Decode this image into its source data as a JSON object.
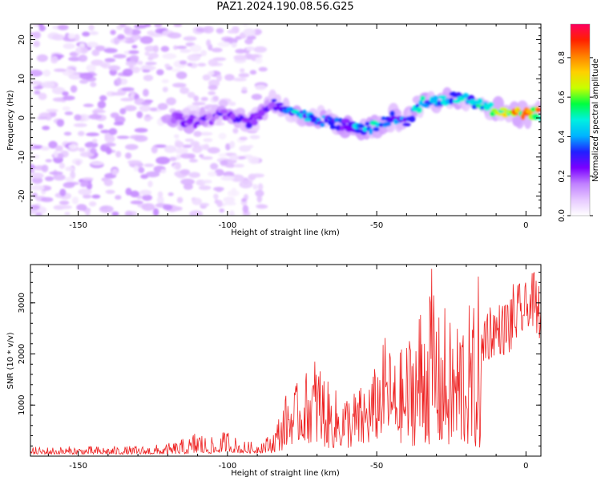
{
  "figure": {
    "title": "PAZ1.2024.190.08.56.G25"
  },
  "chart_data": [
    {
      "type": "heatmap",
      "title": "PAZ1.2024.190.08.56.G25",
      "xlabel": "Height of straight line (km)",
      "ylabel": "Frequency (Hz)",
      "xlim": [
        -166,
        5
      ],
      "ylim": [
        -25,
        24
      ],
      "xticks": [
        -150,
        -100,
        -50,
        0
      ],
      "yticks": [
        -20,
        -10,
        0,
        10,
        20
      ],
      "grid": false,
      "colorbar": {
        "label": "Normalized spectral amplitude",
        "range": [
          0,
          0.97
        ],
        "ticks": [
          0.0,
          0.2,
          0.4,
          0.6,
          0.8
        ],
        "colormap": "gist_ncar-like (white, violet, blue, cyan, green, yellow, orange, red, magenta)",
        "colors": [
          "#ffffff",
          "#e6c8ff",
          "#c080ff",
          "#7a00ff",
          "#2020ff",
          "#00b4ff",
          "#00f0e0",
          "#00ff40",
          "#c8ff00",
          "#ffd000",
          "#ff8000",
          "#ff2000",
          "#ff0060"
        ]
      },
      "ridge": {
        "description": "Main signal ridge frequency vs height",
        "x": [
          -118,
          -110,
          -100,
          -92,
          -85,
          -78,
          -72,
          -66,
          -60,
          -55,
          -50,
          -45,
          -40,
          -35,
          -30,
          -25,
          -20,
          -15,
          -10,
          -5,
          0,
          4
        ],
        "y": [
          0,
          -1,
          1,
          -1,
          4,
          1,
          0,
          -1,
          -2,
          -3,
          -2,
          0,
          -1,
          4,
          4,
          5,
          5,
          3,
          2,
          1,
          1,
          1
        ],
        "amplitude": [
          0.25,
          0.25,
          0.3,
          0.3,
          0.3,
          0.5,
          0.45,
          0.4,
          0.4,
          0.5,
          0.55,
          0.45,
          0.4,
          0.55,
          0.5,
          0.5,
          0.5,
          0.55,
          0.7,
          0.85,
          0.95,
          0.9
        ]
      }
    },
    {
      "type": "line",
      "xlabel": "Height of straight line (km)",
      "ylabel": "SNR (10 * v/v)",
      "xlim": [
        -166,
        5
      ],
      "ylim": [
        0,
        3750
      ],
      "xticks": [
        -150,
        -100,
        -50,
        0
      ],
      "yticks": [
        1000,
        2000,
        3000
      ],
      "grid": false,
      "series": [
        {
          "color": "#ee2222",
          "envelope": {
            "x": [
              -166,
              -150,
              -130,
              -120,
              -112,
              -110,
              -108,
              -104,
              -100,
              -98,
              -95,
              -90,
              -85,
              -82,
              -80,
              -75,
              -70,
              -66,
              -62,
              -58,
              -55,
              -50,
              -47,
              -44,
              -40,
              -36,
              -33,
              -31,
              -29,
              -27,
              -25,
              -22,
              -20,
              -18,
              -16,
              -15,
              -14,
              -12,
              -10,
              -8,
              -6,
              -4,
              -2,
              0,
              2,
              4,
              5
            ],
            "min": [
              40,
              40,
              40,
              40,
              50,
              60,
              60,
              50,
              100,
              70,
              60,
              60,
              60,
              100,
              200,
              300,
              200,
              150,
              150,
              150,
              150,
              300,
              500,
              300,
              200,
              200,
              200,
              300,
              200,
              150,
              150,
              150,
              200,
              150,
              100,
              150,
              1800,
              1900,
              2000,
              2000,
              1900,
              2200,
              2300,
              2500,
              2600,
              2100,
              2500
            ],
            "max": [
              180,
              200,
              200,
              250,
              400,
              680,
              420,
              350,
              560,
              420,
              300,
              280,
              450,
              950,
              1300,
              1500,
              2100,
              1400,
              1250,
              1300,
              1400,
              1800,
              2400,
              1900,
              2300,
              3000,
              3500,
              3750,
              2700,
              3000,
              2600,
              3000,
              3150,
              2800,
              3600,
              2700,
              3300,
              3100,
              3100,
              3000,
              3300,
              3400,
              3400,
              3400,
              3600,
              3600,
              3400
            ]
          }
        }
      ]
    }
  ]
}
